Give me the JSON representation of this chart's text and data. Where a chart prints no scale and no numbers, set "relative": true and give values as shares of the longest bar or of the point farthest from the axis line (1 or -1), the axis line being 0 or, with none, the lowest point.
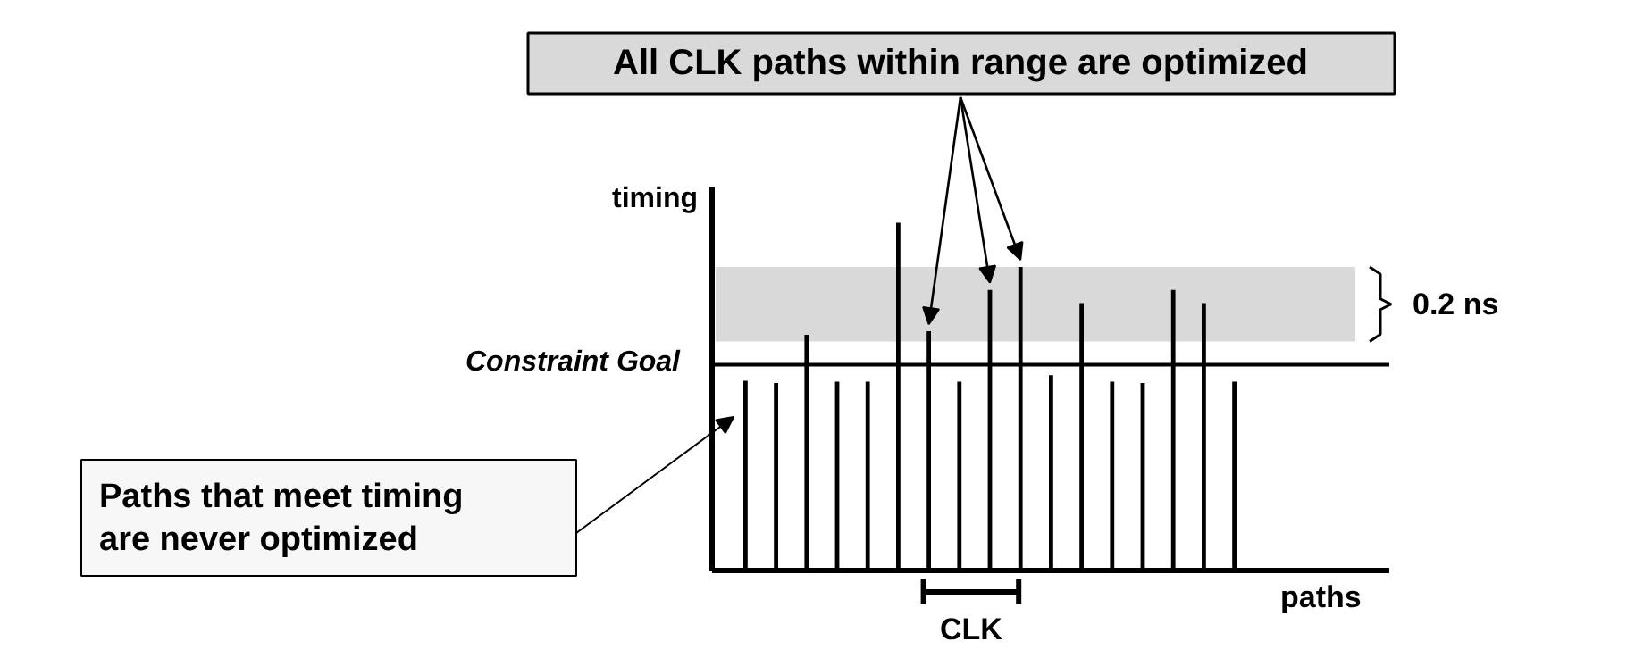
{
  "chart_data": {
    "type": "bar",
    "relative": true,
    "xlabel": "paths",
    "ylabel": "timing",
    "color": "#000000",
    "categories": [
      null,
      null,
      null,
      null,
      null,
      null,
      null,
      null,
      null,
      null,
      null,
      null,
      null,
      null,
      null,
      null,
      null
    ],
    "values": [
      0.546,
      0.539,
      0.678,
      0.543,
      0.543,
      1,
      0.688,
      0.543,
      0.807,
      0.873,
      0.562,
      0.769,
      0.543,
      0.539,
      0.807,
      0.769,
      0.543
    ],
    "ref_lines": [
      {
        "axis": "y",
        "value": 0.592,
        "label": "Constraint Goal"
      }
    ],
    "bands": [
      {
        "axis": "y",
        "from": 0.659,
        "to": 0.873,
        "label": "0.2 ns",
        "color": "#d9d9d9"
      }
    ],
    "annotations": [
      "All CLK paths within range are optimized",
      "Paths that meet timing\nare never optimized",
      "CLK"
    ]
  }
}
